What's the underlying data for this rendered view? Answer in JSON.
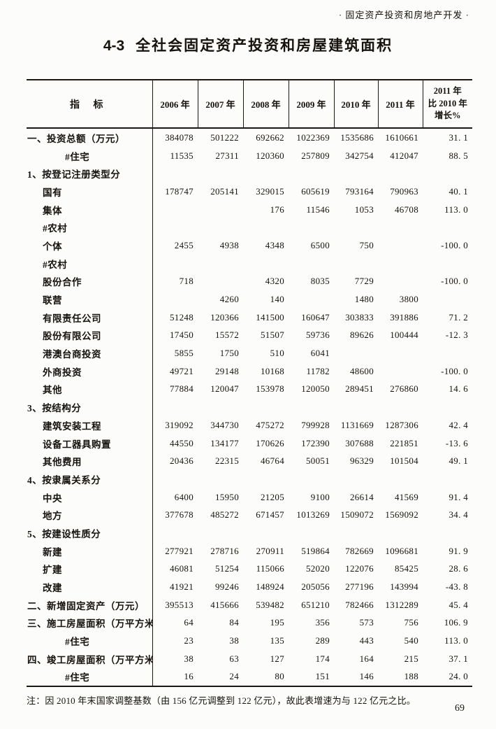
{
  "page": {
    "header_right": "·  固定资产投资和房地产开发  ·",
    "title_number": "4-3",
    "title_text": "全社会固定资产投资和房屋建筑面积",
    "note": "注：因 2010 年末国家调整基数（由 156 亿元调整到 122 亿元），故此表增速为与 122 亿元之比。",
    "page_number": "69"
  },
  "table": {
    "indicator_header": "指 标",
    "columns": [
      "2006 年",
      "2007 年",
      "2008 年",
      "2009 年",
      "2010 年",
      "2011 年",
      "2011 年\n比 2010 年\n增长%"
    ],
    "rows": [
      {
        "label": "一、投资总额（万元）",
        "indent": 0,
        "values": [
          "384078",
          "501222",
          "692662",
          "1022369",
          "1535686",
          "1610661",
          "31. 1"
        ]
      },
      {
        "label": "#住宅",
        "indent": 2,
        "values": [
          "11535",
          "27311",
          "120360",
          "257809",
          "342754",
          "412047",
          "88. 5"
        ]
      },
      {
        "label": "1、按登记注册类型分",
        "indent": 0,
        "values": [
          "",
          "",
          "",
          "",
          "",
          "",
          ""
        ]
      },
      {
        "label": "国有",
        "indent": 1,
        "values": [
          "178747",
          "205141",
          "329015",
          "605619",
          "793164",
          "790963",
          "40. 1"
        ]
      },
      {
        "label": "集体",
        "indent": 1,
        "values": [
          "",
          "",
          "176",
          "11546",
          "1053",
          "46708",
          "113. 0"
        ]
      },
      {
        "label": "#农村",
        "indent": 1,
        "values": [
          "",
          "",
          "",
          "",
          "",
          "",
          ""
        ]
      },
      {
        "label": "个体",
        "indent": 1,
        "values": [
          "2455",
          "4938",
          "4348",
          "6500",
          "750",
          "",
          "-100. 0"
        ]
      },
      {
        "label": "#农村",
        "indent": 1,
        "values": [
          "",
          "",
          "",
          "",
          "",
          "",
          ""
        ]
      },
      {
        "label": "股份合作",
        "indent": 1,
        "values": [
          "718",
          "",
          "4320",
          "8035",
          "7729",
          "",
          "-100. 0"
        ]
      },
      {
        "label": "联营",
        "indent": 1,
        "values": [
          "",
          "4260",
          "140",
          "",
          "1480",
          "3800",
          ""
        ]
      },
      {
        "label": "有限责任公司",
        "indent": 1,
        "values": [
          "51248",
          "120366",
          "141500",
          "160647",
          "303833",
          "391886",
          "71. 2"
        ]
      },
      {
        "label": "股份有限公司",
        "indent": 1,
        "values": [
          "17450",
          "15572",
          "51507",
          "59736",
          "89626",
          "100444",
          "-12. 3"
        ]
      },
      {
        "label": "港澳台商投资",
        "indent": 1,
        "values": [
          "5855",
          "1750",
          "510",
          "6041",
          "",
          "",
          ""
        ]
      },
      {
        "label": "外商投资",
        "indent": 1,
        "values": [
          "49721",
          "29148",
          "10168",
          "11782",
          "48600",
          "",
          "-100. 0"
        ]
      },
      {
        "label": "其他",
        "indent": 1,
        "values": [
          "77884",
          "120047",
          "153978",
          "120050",
          "289451",
          "276860",
          "14. 6"
        ]
      },
      {
        "label": "3、按结构分",
        "indent": 0,
        "values": [
          "",
          "",
          "",
          "",
          "",
          "",
          ""
        ]
      },
      {
        "label": "建筑安装工程",
        "indent": 1,
        "values": [
          "319092",
          "344730",
          "475272",
          "799928",
          "1131669",
          "1287306",
          "42. 4"
        ]
      },
      {
        "label": "设备工器具购置",
        "indent": 1,
        "values": [
          "44550",
          "134177",
          "170626",
          "172390",
          "307688",
          "221851",
          "-13. 6"
        ]
      },
      {
        "label": "其他费用",
        "indent": 1,
        "values": [
          "20436",
          "22315",
          "46764",
          "50051",
          "96329",
          "101504",
          "49. 1"
        ]
      },
      {
        "label": "4、按隶属关系分",
        "indent": 0,
        "values": [
          "",
          "",
          "",
          "",
          "",
          "",
          ""
        ]
      },
      {
        "label": "中央",
        "indent": 1,
        "values": [
          "6400",
          "15950",
          "21205",
          "9100",
          "26614",
          "41569",
          "91. 4"
        ]
      },
      {
        "label": "地方",
        "indent": 1,
        "values": [
          "377678",
          "485272",
          "671457",
          "1013269",
          "1509072",
          "1569092",
          "34. 4"
        ]
      },
      {
        "label": "5、按建设性质分",
        "indent": 0,
        "values": [
          "",
          "",
          "",
          "",
          "",
          "",
          ""
        ]
      },
      {
        "label": "新建",
        "indent": 1,
        "values": [
          "277921",
          "278716",
          "270911",
          "519864",
          "782669",
          "1096681",
          "91. 9"
        ]
      },
      {
        "label": "扩建",
        "indent": 1,
        "values": [
          "46081",
          "51254",
          "115066",
          "52020",
          "122076",
          "85425",
          "28. 6"
        ]
      },
      {
        "label": "改建",
        "indent": 1,
        "values": [
          "41921",
          "99246",
          "148924",
          "205056",
          "277196",
          "143994",
          "-43. 8"
        ]
      },
      {
        "label": "二、新增固定资产（万元）",
        "indent": 0,
        "values": [
          "395513",
          "415666",
          "539482",
          "651210",
          "782466",
          "1312289",
          "45. 4"
        ]
      },
      {
        "label": "三、施工房屋面积（万平方米）",
        "indent": 0,
        "values": [
          "64",
          "84",
          "195",
          "356",
          "573",
          "756",
          "106. 9"
        ]
      },
      {
        "label": "#住宅",
        "indent": 2,
        "values": [
          "23",
          "38",
          "135",
          "289",
          "443",
          "540",
          "113. 0"
        ]
      },
      {
        "label": "四、竣工房屋面积（万平方米）",
        "indent": 0,
        "values": [
          "38",
          "63",
          "127",
          "174",
          "164",
          "215",
          "37. 1"
        ]
      },
      {
        "label": "#住宅",
        "indent": 2,
        "values": [
          "16",
          "24",
          "80",
          "151",
          "146",
          "188",
          "24. 0"
        ]
      }
    ]
  }
}
